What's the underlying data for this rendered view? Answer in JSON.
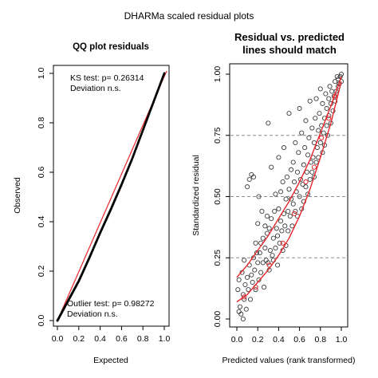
{
  "figure": {
    "title": "DHARMa scaled residual plots"
  },
  "chart_data": [
    {
      "type": "scatter",
      "title": "QQ plot residuals",
      "xlabel": "Expected",
      "ylabel": "Observed",
      "xlim": [
        0,
        1
      ],
      "ylim": [
        0,
        1
      ],
      "xticks": [
        "0.0",
        "0.2",
        "0.4",
        "0.6",
        "0.8",
        "1.0"
      ],
      "yticks": [
        "0.0",
        "0.2",
        "0.4",
        "0.6",
        "0.8",
        "1.0"
      ],
      "annotations": {
        "ks_test": "KS test: p= 0.26314",
        "ks_deviation": "Deviation  n.s.",
        "outlier_test": "Outlier test: p= 0.98272",
        "outlier_deviation": "Deviation  n.s."
      },
      "reference_line": {
        "from": [
          0,
          0
        ],
        "to": [
          1,
          1
        ],
        "color": "#e8262b"
      },
      "qq_curve": [
        [
          0,
          0
        ],
        [
          0.05,
          0.04
        ],
        [
          0.1,
          0.08
        ],
        [
          0.2,
          0.16
        ],
        [
          0.3,
          0.255
        ],
        [
          0.4,
          0.355
        ],
        [
          0.5,
          0.45
        ],
        [
          0.6,
          0.55
        ],
        [
          0.7,
          0.655
        ],
        [
          0.8,
          0.77
        ],
        [
          0.9,
          0.885
        ],
        [
          1,
          1
        ]
      ],
      "point_color": "#000000"
    },
    {
      "type": "scatter",
      "title": "Residual vs. predicted",
      "subtitle": "lines should match",
      "xlabel": "Predicted values (rank transformed)",
      "ylabel": "Standardized residual",
      "xlim": [
        0,
        1
      ],
      "ylim": [
        0,
        1
      ],
      "xticks": [
        "0.0",
        "0.2",
        "0.4",
        "0.6",
        "0.8",
        "1.0"
      ],
      "yticks": [
        "0.00",
        "0.25",
        "0.50",
        "0.75",
        "1.00"
      ],
      "reference_levels": [
        0.25,
        0.5,
        0.75
      ],
      "quantile_curves": [
        {
          "quantile": 0.25,
          "points": [
            [
              0,
              0.07
            ],
            [
              0.1,
              0.1
            ],
            [
              0.2,
              0.15
            ],
            [
              0.3,
              0.2
            ],
            [
              0.4,
              0.26
            ],
            [
              0.5,
              0.33
            ],
            [
              0.6,
              0.42
            ],
            [
              0.7,
              0.53
            ],
            [
              0.8,
              0.66
            ],
            [
              0.9,
              0.8
            ],
            [
              1,
              0.97
            ]
          ]
        },
        {
          "quantile": 0.5,
          "points": [
            [
              0,
              0.17
            ],
            [
              0.1,
              0.22
            ],
            [
              0.2,
              0.28
            ],
            [
              0.3,
              0.34
            ],
            [
              0.4,
              0.41
            ],
            [
              0.5,
              0.48
            ],
            [
              0.6,
              0.56
            ],
            [
              0.7,
              0.65
            ],
            [
              0.8,
              0.76
            ],
            [
              0.9,
              0.87
            ],
            [
              1,
              0.99
            ]
          ]
        }
      ],
      "points": [
        [
          0.01,
          0.12
        ],
        [
          0.02,
          0.03
        ],
        [
          0.02,
          0.16
        ],
        [
          0.03,
          0.05
        ],
        [
          0.04,
          0.02
        ],
        [
          0.05,
          0.19
        ],
        [
          0.06,
          0.0
        ],
        [
          0.06,
          0.1
        ],
        [
          0.07,
          0.08
        ],
        [
          0.07,
          0.24
        ],
        [
          0.08,
          0.14
        ],
        [
          0.09,
          0.04
        ],
        [
          0.1,
          0.17
        ],
        [
          0.1,
          0.54
        ],
        [
          0.11,
          0.12
        ],
        [
          0.12,
          0.22
        ],
        [
          0.12,
          0.57
        ],
        [
          0.13,
          0.08
        ],
        [
          0.14,
          0.18
        ],
        [
          0.14,
          0.59
        ],
        [
          0.15,
          0.15
        ],
        [
          0.16,
          0.25
        ],
        [
          0.16,
          0.58
        ],
        [
          0.17,
          0.2
        ],
        [
          0.18,
          0.12
        ],
        [
          0.18,
          0.31
        ],
        [
          0.19,
          0.27
        ],
        [
          0.2,
          0.23
        ],
        [
          0.2,
          0.39
        ],
        [
          0.21,
          0.16
        ],
        [
          0.21,
          0.5
        ],
        [
          0.22,
          0.27
        ],
        [
          0.23,
          0.31
        ],
        [
          0.23,
          0.19
        ],
        [
          0.24,
          0.44
        ],
        [
          0.25,
          0.33
        ],
        [
          0.25,
          0.23
        ],
        [
          0.26,
          0.13
        ],
        [
          0.27,
          0.29
        ],
        [
          0.27,
          0.38
        ],
        [
          0.28,
          0.24
        ],
        [
          0.29,
          0.35
        ],
        [
          0.29,
          0.42
        ],
        [
          0.3,
          0.23
        ],
        [
          0.3,
          0.8
        ],
        [
          0.31,
          0.2
        ],
        [
          0.31,
          0.37
        ],
        [
          0.32,
          0.28
        ],
        [
          0.33,
          0.41
        ],
        [
          0.33,
          0.62
        ],
        [
          0.34,
          0.26
        ],
        [
          0.35,
          0.33
        ],
        [
          0.35,
          0.24
        ],
        [
          0.36,
          0.44
        ],
        [
          0.37,
          0.29
        ],
        [
          0.37,
          0.51
        ],
        [
          0.38,
          0.37
        ],
        [
          0.39,
          0.34
        ],
        [
          0.39,
          0.22
        ],
        [
          0.4,
          0.45
        ],
        [
          0.4,
          0.66
        ],
        [
          0.41,
          0.31
        ],
        [
          0.42,
          0.4
        ],
        [
          0.42,
          0.52
        ],
        [
          0.43,
          0.36
        ],
        [
          0.44,
          0.28
        ],
        [
          0.44,
          0.56
        ],
        [
          0.45,
          0.43
        ],
        [
          0.45,
          0.7
        ],
        [
          0.46,
          0.38
        ],
        [
          0.47,
          0.49
        ],
        [
          0.47,
          0.3
        ],
        [
          0.48,
          0.58
        ],
        [
          0.49,
          0.44
        ],
        [
          0.49,
          0.36
        ],
        [
          0.5,
          0.53
        ],
        [
          0.5,
          0.84
        ],
        [
          0.51,
          0.42
        ],
        [
          0.52,
          0.61
        ],
        [
          0.52,
          0.49
        ],
        [
          0.53,
          0.38
        ],
        [
          0.54,
          0.64
        ],
        [
          0.54,
          0.47
        ],
        [
          0.55,
          0.56
        ],
        [
          0.56,
          0.44
        ],
        [
          0.56,
          0.72
        ],
        [
          0.57,
          0.52
        ],
        [
          0.58,
          0.6
        ],
        [
          0.58,
          0.42
        ],
        [
          0.59,
          0.68
        ],
        [
          0.6,
          0.5
        ],
        [
          0.6,
          0.86
        ],
        [
          0.61,
          0.57
        ],
        [
          0.62,
          0.45
        ],
        [
          0.62,
          0.76
        ],
        [
          0.63,
          0.55
        ],
        [
          0.64,
          0.63
        ],
        [
          0.64,
          0.48
        ],
        [
          0.65,
          0.7
        ],
        [
          0.66,
          0.54
        ],
        [
          0.66,
          0.81
        ],
        [
          0.67,
          0.6
        ],
        [
          0.68,
          0.51
        ],
        [
          0.68,
          0.67
        ],
        [
          0.69,
          0.74
        ],
        [
          0.7,
          0.57
        ],
        [
          0.7,
          0.89
        ],
        [
          0.71,
          0.64
        ],
        [
          0.72,
          0.6
        ],
        [
          0.72,
          0.78
        ],
        [
          0.73,
          0.66
        ],
        [
          0.74,
          0.72
        ],
        [
          0.74,
          0.58
        ],
        [
          0.75,
          0.82
        ],
        [
          0.76,
          0.64
        ],
        [
          0.76,
          0.9
        ],
        [
          0.77,
          0.7
        ],
        [
          0.78,
          0.77
        ],
        [
          0.78,
          0.66
        ],
        [
          0.79,
          0.84
        ],
        [
          0.8,
          0.72
        ],
        [
          0.8,
          0.94
        ],
        [
          0.81,
          0.79
        ],
        [
          0.82,
          0.68
        ],
        [
          0.82,
          0.88
        ],
        [
          0.83,
          0.76
        ],
        [
          0.84,
          0.82
        ],
        [
          0.84,
          0.71
        ],
        [
          0.85,
          0.92
        ],
        [
          0.86,
          0.79
        ],
        [
          0.86,
          0.86
        ],
        [
          0.87,
          0.75
        ],
        [
          0.88,
          0.9
        ],
        [
          0.88,
          0.83
        ],
        [
          0.89,
          0.95
        ],
        [
          0.9,
          0.8
        ],
        [
          0.9,
          0.88
        ],
        [
          0.91,
          0.93
        ],
        [
          0.92,
          0.85
        ],
        [
          0.93,
          0.91
        ],
        [
          0.94,
          0.97
        ],
        [
          0.94,
          0.89
        ],
        [
          0.95,
          0.93
        ],
        [
          0.96,
          0.99
        ],
        [
          0.97,
          0.95
        ],
        [
          0.97,
          0.98
        ],
        [
          0.98,
          0.96
        ],
        [
          0.99,
          0.99
        ],
        [
          1.0,
          0.97
        ],
        [
          1.0,
          1.0
        ]
      ],
      "highlight_points": [
        [
          0.07,
          0.09
        ],
        [
          0.18,
          0.13
        ],
        [
          0.31,
          0.22
        ],
        [
          0.44,
          0.31
        ],
        [
          0.55,
          0.43
        ],
        [
          0.66,
          0.56
        ],
        [
          0.74,
          0.62
        ],
        [
          0.81,
          0.74
        ],
        [
          0.88,
          0.82
        ],
        [
          0.94,
          0.91
        ]
      ],
      "point_color": "#3b3b3b",
      "curve_color": "#e8262b",
      "reference_color": "#8c8c8c"
    }
  ]
}
